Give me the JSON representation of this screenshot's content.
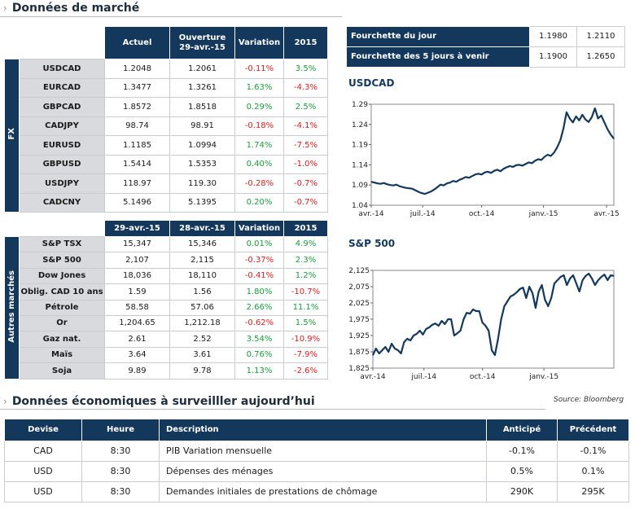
{
  "section_market": {
    "title": "Données de marché"
  },
  "fx": {
    "side_label": "FX",
    "headers": [
      "Actuel",
      "Ouverture\n29-avr.-15",
      "Variation",
      "2015"
    ],
    "rows": [
      {
        "name": "USDCAD",
        "actuel": "1.2048",
        "ouverture": "1.2061",
        "variation": "-0.11%",
        "y2015": "3.5%"
      },
      {
        "name": "EURCAD",
        "actuel": "1.3477",
        "ouverture": "1.3261",
        "variation": "1.63%",
        "y2015": "-4.3%"
      },
      {
        "name": "GBPCAD",
        "actuel": "1.8572",
        "ouverture": "1.8518",
        "variation": "0.29%",
        "y2015": "2.5%"
      },
      {
        "name": "CADJPY",
        "actuel": "98.74",
        "ouverture": "98.91",
        "variation": "-0.18%",
        "y2015": "-4.1%"
      },
      {
        "name": "EURUSD",
        "actuel": "1.1185",
        "ouverture": "1.0994",
        "variation": "1.74%",
        "y2015": "-7.5%"
      },
      {
        "name": "GBPUSD",
        "actuel": "1.5414",
        "ouverture": "1.5353",
        "variation": "0.40%",
        "y2015": "-1.0%"
      },
      {
        "name": "USDJPY",
        "actuel": "118.97",
        "ouverture": "119.30",
        "variation": "-0.28%",
        "y2015": "-0.7%"
      },
      {
        "name": "CADCNY",
        "actuel": "5.1496",
        "ouverture": "5.1395",
        "variation": "0.20%",
        "y2015": "-0.7%"
      }
    ]
  },
  "other": {
    "side_label": "Autres marchés",
    "headers": [
      "29-avr.-15",
      "28-avr.-15",
      "Variation",
      "2015"
    ],
    "rows": [
      {
        "name": "S&P TSX",
        "c1": "15,347",
        "c2": "15,346",
        "variation": "0.01%",
        "y2015": "4.9%"
      },
      {
        "name": "S&P 500",
        "c1": "2,107",
        "c2": "2,115",
        "variation": "-0.37%",
        "y2015": "2.3%"
      },
      {
        "name": "Dow Jones",
        "c1": "18,036",
        "c2": "18,110",
        "variation": "-0.41%",
        "y2015": "1.2%"
      },
      {
        "name": "Oblig. CAD 10 ans",
        "c1": "1.59",
        "c2": "1.56",
        "variation": "1.80%",
        "y2015": "-10.7%"
      },
      {
        "name": "Pétrole",
        "c1": "58.58",
        "c2": "57.06",
        "variation": "2.66%",
        "y2015": "11.1%"
      },
      {
        "name": "Or",
        "c1": "1,204.65",
        "c2": "1,212.18",
        "variation": "-0.62%",
        "y2015": "1.5%"
      },
      {
        "name": "Gaz nat.",
        "c1": "2.61",
        "c2": "2.52",
        "variation": "3.54%",
        "y2015": "-10.9%"
      },
      {
        "name": "Maïs",
        "c1": "3.64",
        "c2": "3.61",
        "variation": "0.76%",
        "y2015": "-7.9%"
      },
      {
        "name": "Soja",
        "c1": "9.89",
        "c2": "9.78",
        "variation": "1.13%",
        "y2015": "-2.6%"
      }
    ]
  },
  "range": {
    "rows": [
      {
        "label": "Fourchette du jour",
        "low": "1.1980",
        "high": "1.2110"
      },
      {
        "label": "Fourchette des 5 jours à venir",
        "low": "1.1900",
        "high": "1.2650"
      }
    ]
  },
  "chart_data": [
    {
      "type": "line",
      "title": "USDCAD",
      "ylim": [
        1.04,
        1.29
      ],
      "yticks": [
        "1.29",
        "1.24",
        "1.19",
        "1.14",
        "1.09",
        "1.04"
      ],
      "xticks": [
        "avr.-14",
        "juil.-14",
        "oct.-14",
        "janv.-15",
        "avr.-15"
      ],
      "x": [
        0,
        5,
        10,
        15,
        20,
        25,
        30,
        35,
        40,
        45,
        50,
        55,
        60,
        65,
        70,
        75,
        80,
        85,
        90,
        95,
        100,
        105,
        110,
        115,
        120,
        125,
        130,
        135,
        140,
        145,
        150,
        155,
        160,
        165,
        170,
        175,
        180,
        185,
        190,
        195,
        200,
        205,
        210,
        215,
        220,
        225,
        230,
        235,
        240,
        245,
        250,
        255,
        260,
        265,
        270,
        275,
        280,
        285,
        290,
        295,
        300,
        305,
        310,
        315,
        320,
        325,
        330,
        335,
        340,
        345,
        350,
        355,
        360,
        365,
        370,
        375,
        380,
        385
      ],
      "values": [
        1.098,
        1.096,
        1.094,
        1.093,
        1.095,
        1.092,
        1.09,
        1.089,
        1.091,
        1.087,
        1.085,
        1.083,
        1.082,
        1.081,
        1.077,
        1.073,
        1.07,
        1.068,
        1.071,
        1.074,
        1.079,
        1.085,
        1.091,
        1.089,
        1.094,
        1.096,
        1.1,
        1.098,
        1.103,
        1.106,
        1.11,
        1.108,
        1.112,
        1.116,
        1.118,
        1.116,
        1.121,
        1.123,
        1.12,
        1.125,
        1.128,
        1.124,
        1.13,
        1.134,
        1.137,
        1.135,
        1.139,
        1.14,
        1.138,
        1.142,
        1.146,
        1.144,
        1.15,
        1.154,
        1.152,
        1.16,
        1.165,
        1.162,
        1.17,
        1.183,
        1.2,
        1.23,
        1.27,
        1.255,
        1.245,
        1.26,
        1.25,
        1.264,
        1.252,
        1.246,
        1.258,
        1.28,
        1.255,
        1.262,
        1.245,
        1.228,
        1.215,
        1.205
      ]
    },
    {
      "type": "line",
      "title": "S&P 500",
      "ylim": [
        1825,
        2125
      ],
      "yticks": [
        "2,125",
        "2,075",
        "2,025",
        "1,975",
        "1,925",
        "1,875",
        "1,825"
      ],
      "xticks": [
        "avr.-14",
        "juil.-14",
        "oct.-14",
        "janv.-15"
      ],
      "x": [
        0,
        5,
        10,
        15,
        20,
        25,
        30,
        35,
        40,
        45,
        50,
        55,
        60,
        65,
        70,
        75,
        80,
        85,
        90,
        95,
        100,
        105,
        110,
        115,
        120,
        125,
        130,
        135,
        140,
        145,
        150,
        155,
        160,
        165,
        170,
        175,
        180,
        185,
        190,
        195,
        200,
        205,
        210,
        215,
        220,
        225,
        230,
        235,
        240,
        245,
        250,
        255,
        260,
        265,
        270,
        275,
        280,
        285,
        290,
        295,
        300,
        305,
        310,
        315,
        320,
        325,
        330,
        335,
        340,
        345,
        350,
        355,
        360,
        365,
        370,
        375,
        380,
        385
      ],
      "values": [
        1865,
        1885,
        1870,
        1880,
        1890,
        1875,
        1900,
        1885,
        1880,
        1870,
        1905,
        1915,
        1910,
        1925,
        1930,
        1940,
        1928,
        1945,
        1950,
        1958,
        1962,
        1955,
        1970,
        1960,
        1975,
        1975,
        1925,
        1932,
        1940,
        1975,
        1995,
        1992,
        2005,
        2000,
        2000,
        1965,
        1955,
        1940,
        1880,
        1865,
        1915,
        1975,
        2015,
        2030,
        2045,
        2050,
        2058,
        2068,
        2072,
        2040,
        2075,
        2055,
        2010,
        2060,
        2080,
        2035,
        2015,
        2040,
        2085,
        2095,
        2105,
        2110,
        2080,
        2100,
        2110,
        2085,
        2060,
        2095,
        2108,
        2115,
        2100,
        2080,
        2095,
        2105,
        2112,
        2095,
        2110,
        2108
      ]
    }
  ],
  "source": "Source: Bloomberg",
  "section_econ": {
    "title": "Données économiques à surveilller aujourd’hui"
  },
  "econ": {
    "headers": [
      "Devise",
      "Heure",
      "Description",
      "Anticipé",
      "Précédent"
    ],
    "rows": [
      {
        "devise": "CAD",
        "heure": "8:30",
        "description": "PIB Variation mensuelle",
        "anticipe": "-0.1%",
        "precedent": "-0.1%"
      },
      {
        "devise": "USD",
        "heure": "8:30",
        "description": "Dépenses des ménages",
        "anticipe": "0.5%",
        "precedent": "0.1%"
      },
      {
        "devise": "USD",
        "heure": "8:30",
        "description": "Demandes initiales de prestations de chômage",
        "anticipe": "290K",
        "precedent": "295K"
      }
    ]
  }
}
